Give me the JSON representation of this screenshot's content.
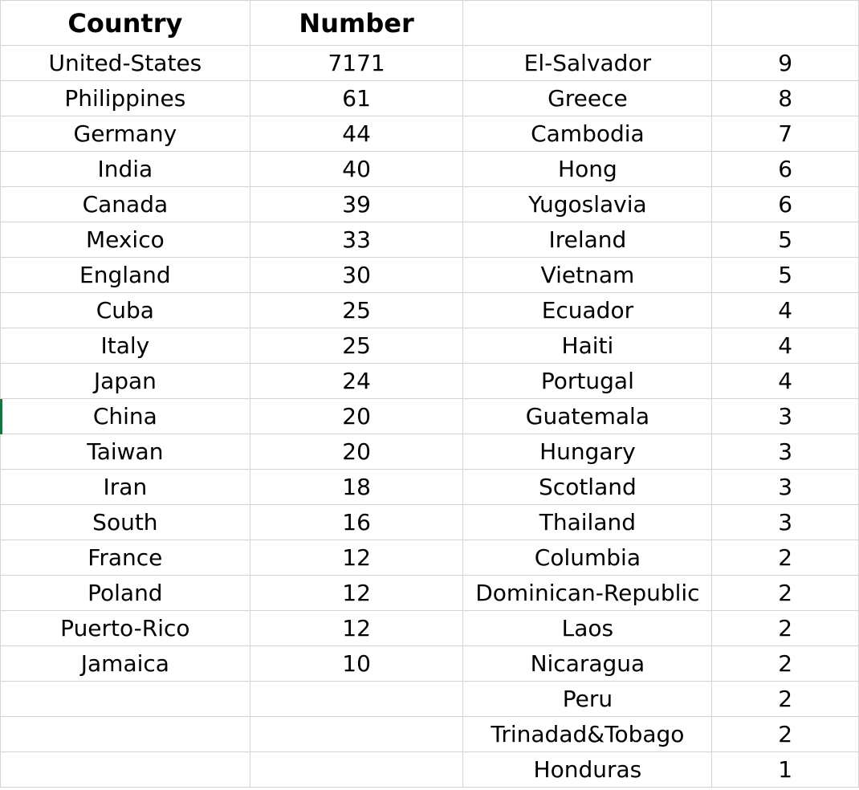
{
  "headers": {
    "country": "Country",
    "number": "Number",
    "country2": "",
    "number2": ""
  },
  "rows": [
    {
      "country": "United-States",
      "number": "7171",
      "country2": "El-Salvador",
      "number2": "9"
    },
    {
      "country": "Philippines",
      "number": "61",
      "country2": "Greece",
      "number2": "8"
    },
    {
      "country": "Germany",
      "number": "44",
      "country2": "Cambodia",
      "number2": "7"
    },
    {
      "country": "India",
      "number": "40",
      "country2": "Hong",
      "number2": "6"
    },
    {
      "country": "Canada",
      "number": "39",
      "country2": "Yugoslavia",
      "number2": "6"
    },
    {
      "country": "Mexico",
      "number": "33",
      "country2": "Ireland",
      "number2": "5"
    },
    {
      "country": "England",
      "number": "30",
      "country2": "Vietnam",
      "number2": "5"
    },
    {
      "country": "Cuba",
      "number": "25",
      "country2": "Ecuador",
      "number2": "4"
    },
    {
      "country": "Italy",
      "number": "25",
      "country2": "Haiti",
      "number2": "4"
    },
    {
      "country": "Japan",
      "number": "24",
      "country2": "Portugal",
      "number2": "4"
    },
    {
      "country": "China",
      "number": "20",
      "country2": "Guatemala",
      "number2": "3"
    },
    {
      "country": "Taiwan",
      "number": "20",
      "country2": "Hungary",
      "number2": "3"
    },
    {
      "country": "Iran",
      "number": "18",
      "country2": "Scotland",
      "number2": "3"
    },
    {
      "country": "South",
      "number": "16",
      "country2": "Thailand",
      "number2": "3"
    },
    {
      "country": "France",
      "number": "12",
      "country2": "Columbia",
      "number2": "2"
    },
    {
      "country": "Poland",
      "number": "12",
      "country2": "Dominican-Republic",
      "number2": "2"
    },
    {
      "country": "Puerto-Rico",
      "number": "12",
      "country2": "Laos",
      "number2": "2"
    },
    {
      "country": "Jamaica",
      "number": "10",
      "country2": "Nicaragua",
      "number2": "2"
    },
    {
      "country": "",
      "number": "",
      "country2": "Peru",
      "number2": "2"
    },
    {
      "country": "",
      "number": "",
      "country2": "Trinadad&Tobago",
      "number2": "2"
    },
    {
      "country": "",
      "number": "",
      "country2": "Honduras",
      "number2": "1"
    }
  ],
  "colors": {
    "gridline": "#d4d4d4",
    "selection_edge": "#1e7145"
  }
}
